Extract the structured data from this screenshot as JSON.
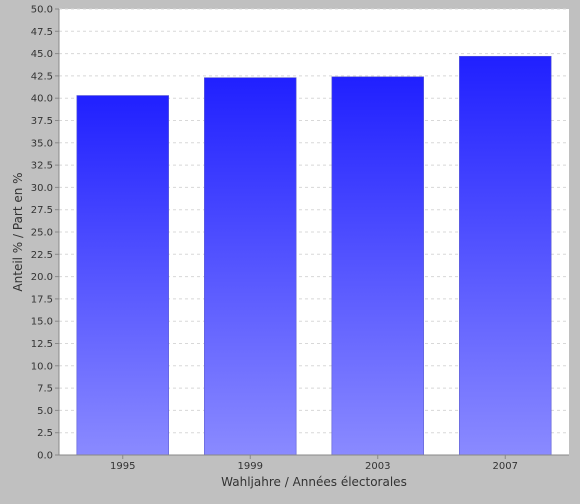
{
  "chart_data": {
    "type": "bar",
    "categories": [
      "1995",
      "1999",
      "2003",
      "2007"
    ],
    "values": [
      40.3,
      42.3,
      42.4,
      44.7
    ],
    "xlabel": "Wahljahre / Années électorales",
    "ylabel": "Anteil % / Part en %",
    "ylim": [
      0,
      50
    ],
    "yticks": [
      "0.0",
      "2.5",
      "5.0",
      "7.5",
      "10.0",
      "12.5",
      "15.0",
      "17.5",
      "20.0",
      "22.5",
      "25.0",
      "27.5",
      "30.0",
      "32.5",
      "35.0",
      "37.5",
      "40.0",
      "42.5",
      "45.0",
      "47.5",
      "50.0"
    ],
    "grid": true,
    "legend": "none",
    "colors": {
      "background": "#c0c0c0",
      "plot_background": "#ffffff",
      "grid": "#d8d8d8",
      "bar_top": "#2020ff",
      "bar_bottom": "#8a8aff",
      "text": "#333333"
    }
  }
}
